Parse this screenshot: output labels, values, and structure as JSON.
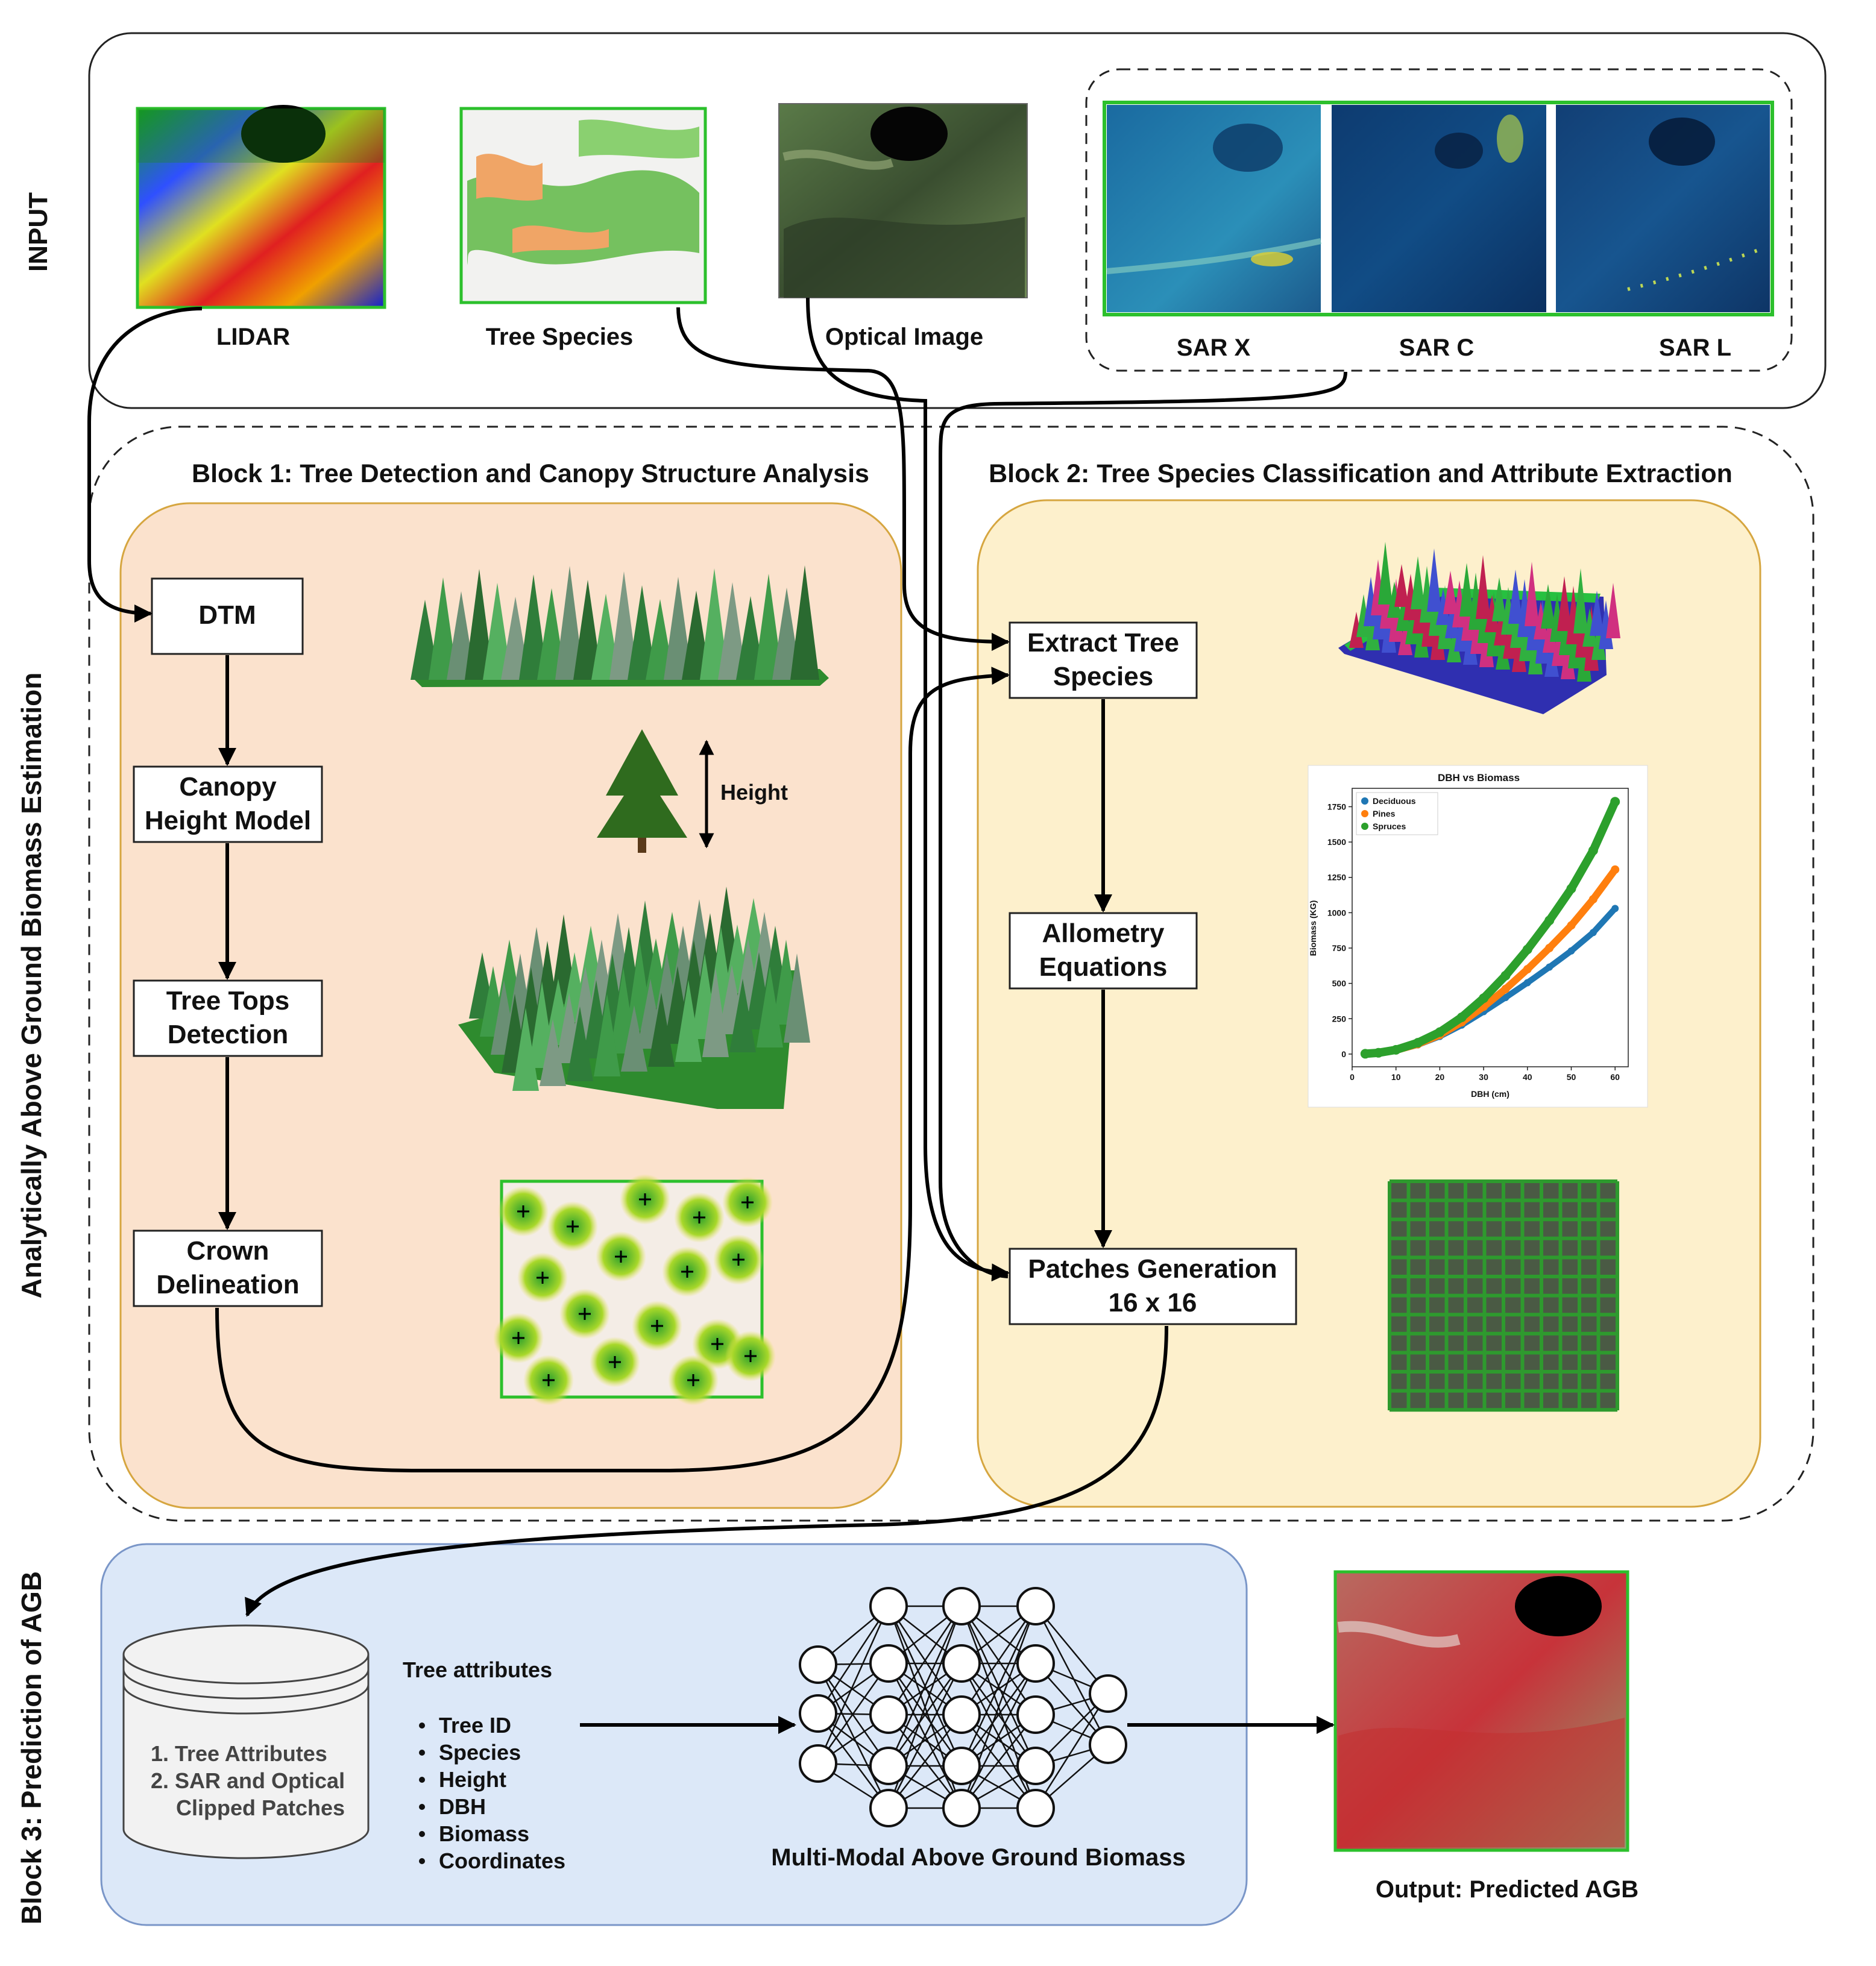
{
  "input": {
    "label": "INPUT",
    "images": [
      {
        "label": "LIDAR"
      },
      {
        "label": "Tree Species"
      },
      {
        "label": "Optical Image"
      }
    ],
    "sar": [
      {
        "label": "SAR X"
      },
      {
        "label": "SAR C"
      },
      {
        "label": "SAR L"
      }
    ]
  },
  "analytic": {
    "side_label": "Analytically Above Ground Biomass Estimation",
    "block1": {
      "title": "Block 1: Tree Detection and Canopy Structure Analysis",
      "steps": [
        {
          "lines": [
            "DTM"
          ]
        },
        {
          "lines": [
            "Canopy",
            "Height Model"
          ]
        },
        {
          "lines": [
            "Tree Tops",
            "Detection"
          ]
        },
        {
          "lines": [
            "Crown",
            "Delineation"
          ]
        }
      ],
      "height_label": "Height"
    },
    "block2": {
      "title": "Block 2: Tree Species Classification and Attribute Extraction",
      "steps": [
        {
          "lines": [
            "Extract Tree",
            "Species"
          ]
        },
        {
          "lines": [
            "Allometry",
            "Equations"
          ]
        },
        {
          "lines": [
            "Patches Generation",
            "16 x 16"
          ]
        }
      ]
    }
  },
  "chart_data": {
    "type": "scatter",
    "title": "DBH vs Biomass",
    "xlabel": "DBH (cm)",
    "ylabel": "Biomass (KG)",
    "xlim": [
      0,
      63
    ],
    "ylim": [
      -90,
      1880
    ],
    "x_ticks": [
      0,
      10,
      20,
      30,
      40,
      50,
      60
    ],
    "y_ticks": [
      0,
      250,
      500,
      750,
      1000,
      1250,
      1500,
      1750
    ],
    "legend_position": "top-left",
    "x": [
      3,
      6,
      10,
      15,
      20,
      25,
      30,
      35,
      40,
      45,
      50,
      55,
      60
    ],
    "series": [
      {
        "name": "Deciduous",
        "color": "#1f77b4",
        "values": [
          2,
          8,
          25,
          65,
          125,
          205,
          300,
          400,
          505,
          615,
          730,
          860,
          1030
        ]
      },
      {
        "name": "Pines",
        "color": "#ff7f0e",
        "values": [
          2,
          8,
          27,
          70,
          135,
          225,
          335,
          460,
          600,
          750,
          910,
          1095,
          1305
        ]
      },
      {
        "name": "Spruces",
        "color": "#2ca02c",
        "values": [
          2,
          9,
          30,
          80,
          155,
          260,
          395,
          555,
          740,
          945,
          1170,
          1440,
          1785
        ]
      }
    ]
  },
  "block3": {
    "side_label": "Block 3: Prediction of AGB",
    "database": [
      "1. Tree Attributes",
      "2. SAR and Optical",
      "Clipped Patches"
    ],
    "attributes_title": "Tree attributes",
    "attributes": [
      "Tree ID",
      "Species",
      "Height",
      "DBH",
      "Biomass",
      "Coordinates"
    ],
    "network_label": "Multi-Modal Above Ground Biomass",
    "output_label": "Output: Predicted AGB"
  }
}
